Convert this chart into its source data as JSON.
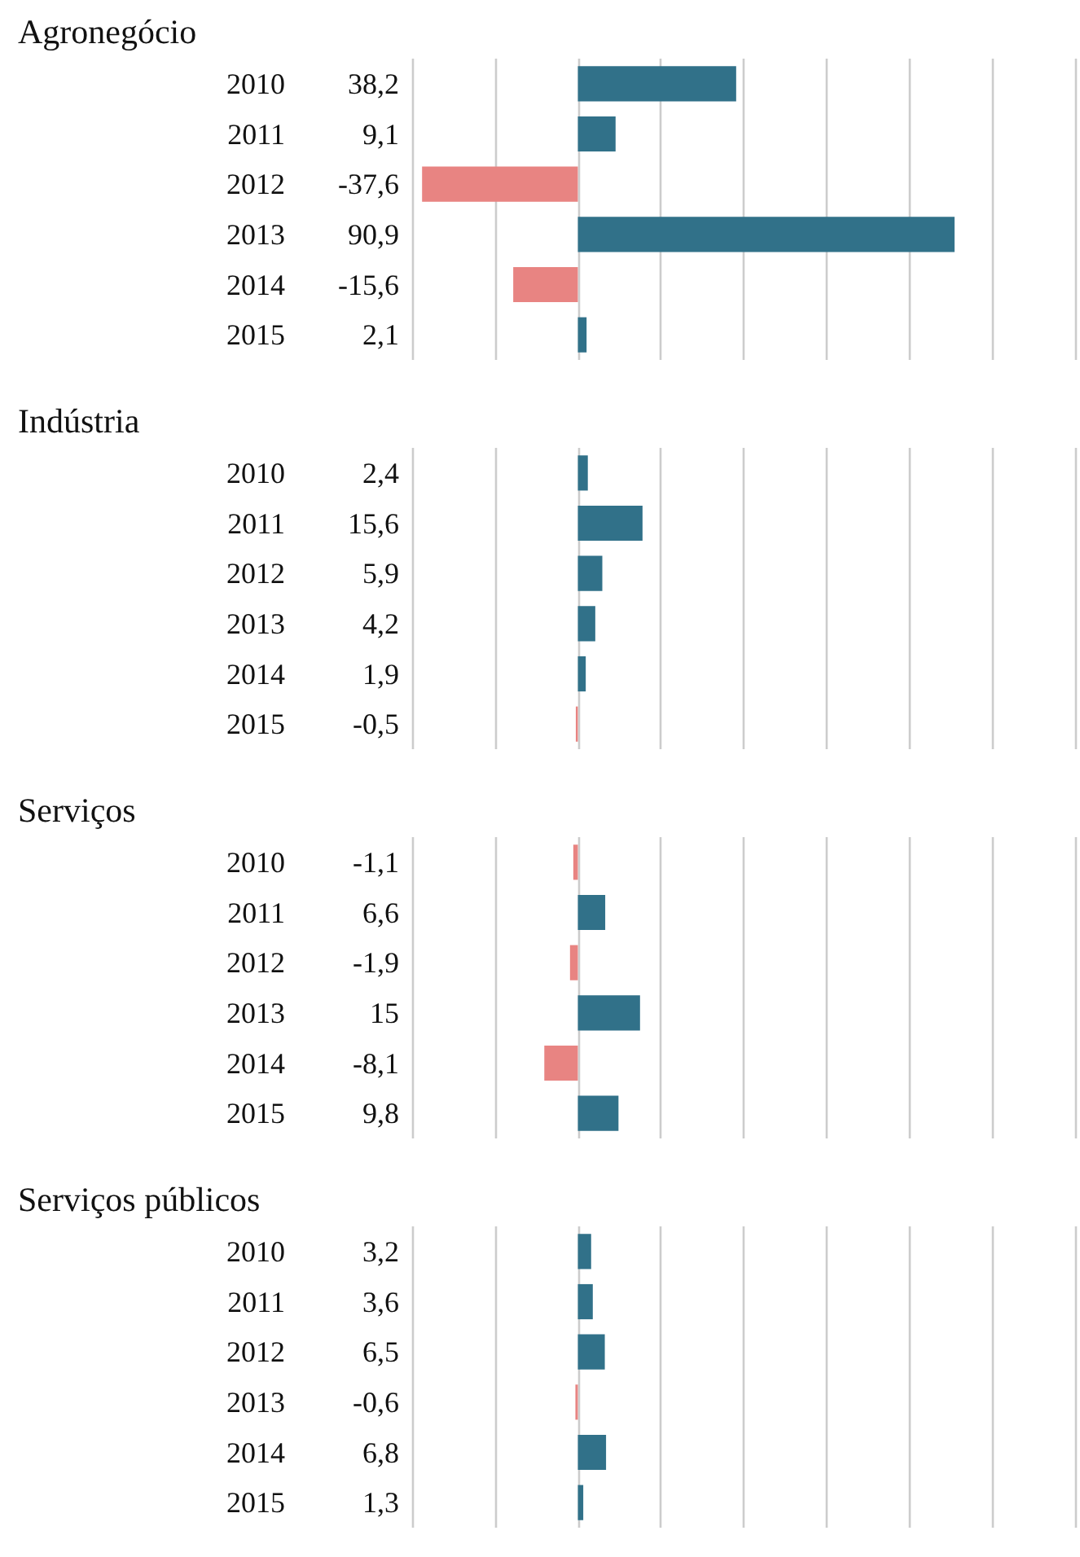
{
  "chart_data": [
    {
      "type": "bar",
      "orientation": "horizontal",
      "title": "Agronegócio",
      "categories": [
        "2010",
        "2011",
        "2012",
        "2013",
        "2014",
        "2015"
      ],
      "values": [
        38.2,
        9.1,
        -37.6,
        90.9,
        -15.6,
        2.1
      ],
      "value_labels": [
        "38,2",
        "9,1",
        "-37,6",
        "90,9",
        "-15,6",
        "2,1"
      ],
      "colors": [
        "#317189",
        "#317189",
        "#e88482",
        "#317189",
        "#e88482",
        "#317189"
      ],
      "xlim": [
        -40,
        120
      ],
      "xticks": [
        {
          "value": -40,
          "label": null
        },
        {
          "value": -20,
          "label": null
        },
        {
          "value": 0,
          "label": null
        },
        {
          "value": 20,
          "label": null
        },
        {
          "value": 40,
          "label": null
        },
        {
          "value": 60,
          "label": null
        },
        {
          "value": 80,
          "label": null
        },
        {
          "value": 100,
          "label": null
        },
        {
          "value": 120,
          "label": null
        }
      ],
      "grid": "x",
      "tick_labels": "y"
    },
    {
      "type": "bar",
      "orientation": "horizontal",
      "title": "Indústria",
      "categories": [
        "2010",
        "2011",
        "2012",
        "2013",
        "2014",
        "2015"
      ],
      "values": [
        2.4,
        15.6,
        5.9,
        4.2,
        1.9,
        -0.5
      ],
      "value_labels": [
        "2,4",
        "15,6",
        "5,9",
        "4,2",
        "1,9",
        "-0,5"
      ],
      "colors": [
        "#317189",
        "#317189",
        "#317189",
        "#317189",
        "#317189",
        "#e88482"
      ],
      "xlim": [
        -40,
        120
      ],
      "xticks": [
        {
          "value": -40,
          "label": null
        },
        {
          "value": -20,
          "label": null
        },
        {
          "value": 0,
          "label": null
        },
        {
          "value": 20,
          "label": null
        },
        {
          "value": 40,
          "label": null
        },
        {
          "value": 60,
          "label": null
        },
        {
          "value": 80,
          "label": null
        },
        {
          "value": 100,
          "label": null
        },
        {
          "value": 120,
          "label": null
        }
      ],
      "grid": "x",
      "tick_labels": "y"
    },
    {
      "type": "bar",
      "orientation": "horizontal",
      "title": "Serviços",
      "categories": [
        "2010",
        "2011",
        "2012",
        "2013",
        "2014",
        "2015"
      ],
      "values": [
        -1.1,
        6.6,
        -1.9,
        15,
        -8.1,
        9.8
      ],
      "value_labels": [
        "-1,1",
        "6,6",
        "-1,9",
        "15",
        "-8,1",
        "9,8"
      ],
      "colors": [
        "#e88482",
        "#317189",
        "#e88482",
        "#317189",
        "#e88482",
        "#317189"
      ],
      "xlim": [
        -40,
        120
      ],
      "xticks": [
        {
          "value": -40,
          "label": null
        },
        {
          "value": -20,
          "label": null
        },
        {
          "value": 0,
          "label": null
        },
        {
          "value": 20,
          "label": null
        },
        {
          "value": 40,
          "label": null
        },
        {
          "value": 60,
          "label": null
        },
        {
          "value": 80,
          "label": null
        },
        {
          "value": 100,
          "label": null
        },
        {
          "value": 120,
          "label": null
        }
      ],
      "grid": "x",
      "tick_labels": "y"
    },
    {
      "type": "bar",
      "orientation": "horizontal",
      "title": "Serviços públicos",
      "categories": [
        "2010",
        "2011",
        "2012",
        "2013",
        "2014",
        "2015"
      ],
      "values": [
        3.2,
        3.6,
        6.5,
        -0.6,
        6.8,
        1.3
      ],
      "value_labels": [
        "3,2",
        "3,6",
        "6,5",
        "-0,6",
        "6,8",
        "1,3"
      ],
      "colors": [
        "#317189",
        "#317189",
        "#317189",
        "#e88482",
        "#317189",
        "#317189"
      ],
      "xlim": [
        -40,
        120
      ],
      "xticks": [
        {
          "value": -40,
          "label": null
        },
        {
          "value": -20,
          "label": null
        },
        {
          "value": 0,
          "label": null
        },
        {
          "value": 20,
          "label": null
        },
        {
          "value": 40,
          "label": null
        },
        {
          "value": 60,
          "label": null
        },
        {
          "value": 80,
          "label": null
        },
        {
          "value": 100,
          "label": null
        },
        {
          "value": 120,
          "label": null
        }
      ],
      "grid": "x",
      "tick_labels": "y"
    }
  ]
}
